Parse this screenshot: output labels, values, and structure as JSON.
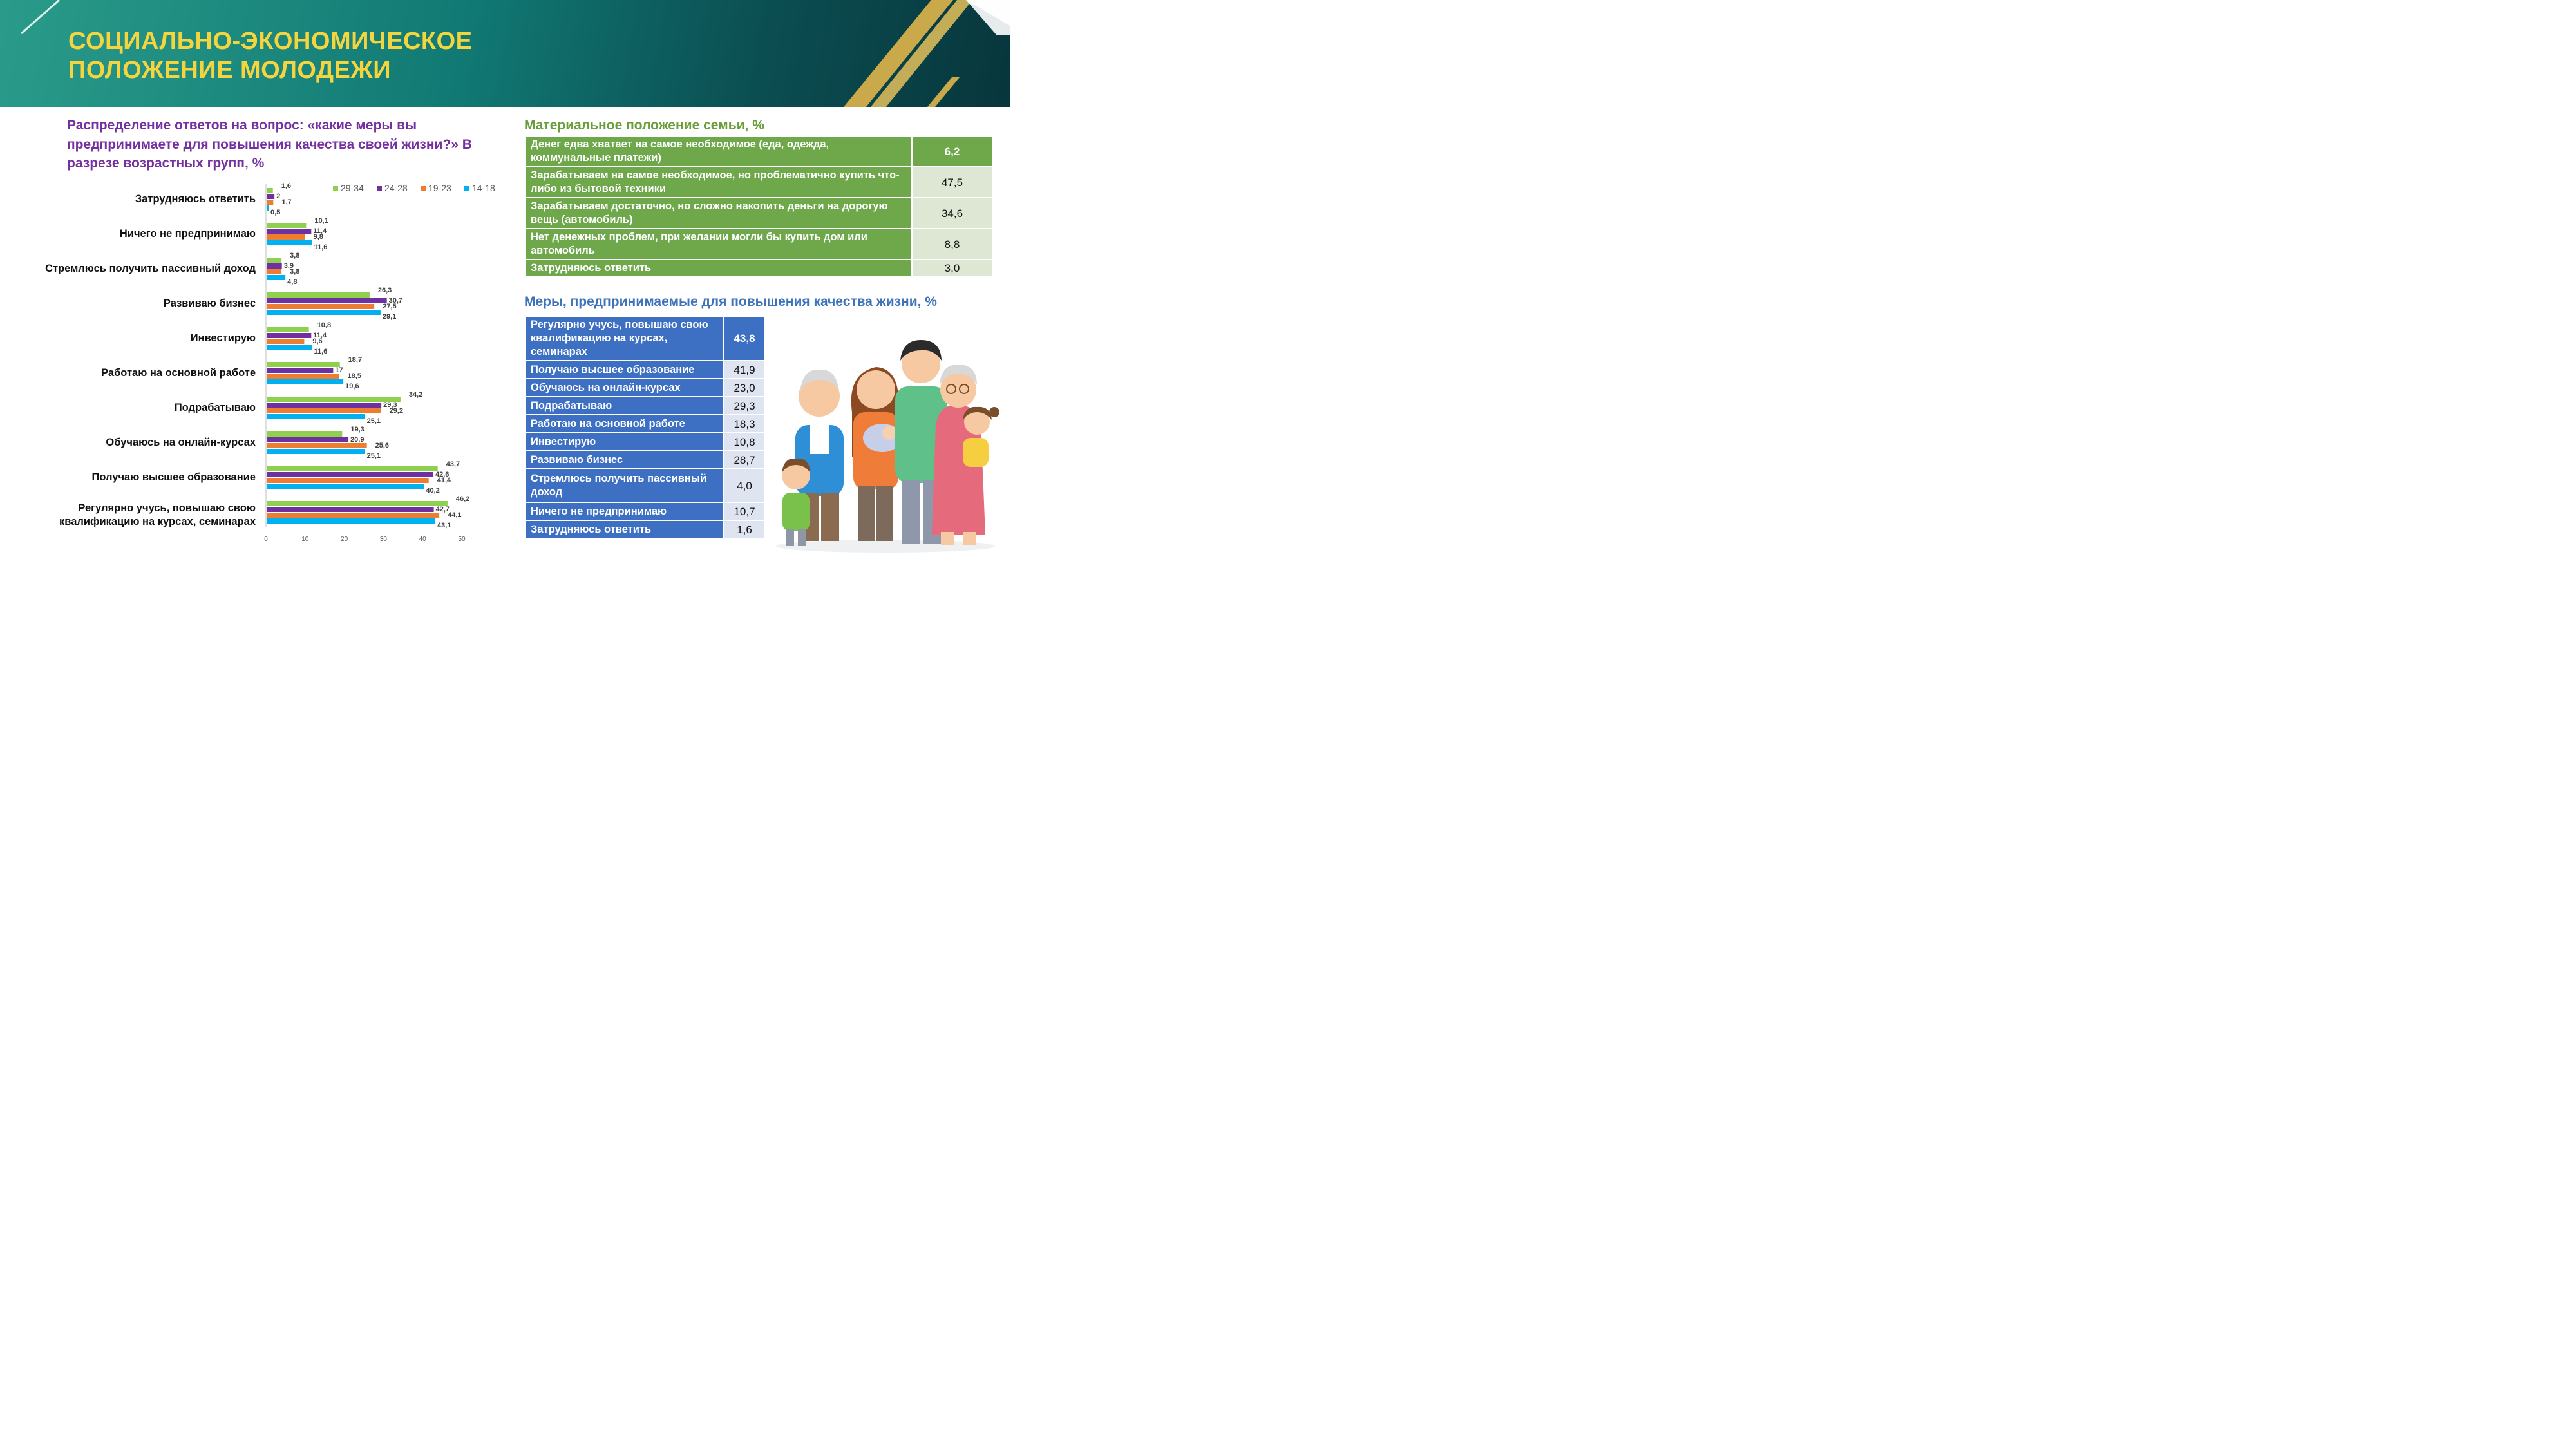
{
  "header": {
    "title_line1": "СОЦИАЛЬНО-ЭКОНОМИЧЕСКОЕ",
    "title_line2": "ПОЛОЖЕНИЕ МОЛОДЕЖИ",
    "colors": {
      "title": "#f4d53f",
      "background": "#117a74"
    }
  },
  "chart_title": "Распределение ответов на вопрос: «какие меры вы предпринимаете для повышения качества своей жизни?» В разрезе возрастных групп, %",
  "chart_data": {
    "type": "bar",
    "orientation": "horizontal",
    "title": "Распределение ответов на вопрос: «какие меры вы предпринимаете для повышения качества своей жизни?» В разрезе возрастных групп, %",
    "categories": [
      "Затрудняюсь ответить",
      "Ничего не предпринимаю",
      "Стремлюсь получить пассивный доход",
      "Развиваю бизнес",
      "Инвестирую",
      "Работаю на основной работе",
      "Подрабатываю",
      "Обучаюсь на онлайн-курсах",
      "Получаю высшее образование",
      "Регулярно учусь, повышаю свою квалификацию на курсах, семинарах"
    ],
    "series": [
      {
        "name": "29-34",
        "color": "#8fd14f",
        "values": [
          1.6,
          10.1,
          3.8,
          26.3,
          10.8,
          18.7,
          34.2,
          19.3,
          43.7,
          46.2
        ],
        "labels": [
          "1,6",
          "10,1",
          "3,8",
          "26,3",
          "10,8",
          "18,7",
          "34,2",
          "19,3",
          "43,7",
          "46,2"
        ]
      },
      {
        "name": "24-28",
        "color": "#7030a0",
        "values": [
          2,
          11.4,
          3.9,
          30.7,
          11.4,
          17,
          29.3,
          20.9,
          42.6,
          42.7
        ],
        "labels": [
          "2",
          "11,4",
          "3,9",
          "30,7",
          "11,4",
          "17",
          "29,3",
          "20,9",
          "42,6",
          "42,7"
        ]
      },
      {
        "name": "19-23",
        "color": "#ed7d31",
        "values": [
          1.7,
          9.8,
          3.8,
          27.5,
          9.6,
          18.5,
          29.2,
          25.6,
          41.4,
          44.1
        ],
        "labels": [
          "1,7",
          "9,8",
          "3,8",
          "27,5",
          "9,6",
          "18,5",
          "29,2",
          "25,6",
          "41,4",
          "44,1"
        ]
      },
      {
        "name": "14-18",
        "color": "#00b0f0",
        "values": [
          0.5,
          11.6,
          4.8,
          29.1,
          11.6,
          19.6,
          25.1,
          25.1,
          40.2,
          43.1
        ],
        "labels": [
          "0,5",
          "11,6",
          "4,8",
          "29,1",
          "11,6",
          "19,6",
          "25,1",
          "25,1",
          "40,2",
          "43,1"
        ]
      }
    ],
    "xlim": [
      0,
      50
    ],
    "xticks": [
      "0",
      "10",
      "20",
      "30",
      "40",
      "50"
    ],
    "grid": false,
    "legend_position": "top"
  },
  "table1": {
    "title": "Материальное положение семьи, %",
    "rows": [
      {
        "label": "Денег едва хватает на самое необходимое (еда, одежда, коммунальные платежи)",
        "value": "6,2"
      },
      {
        "label": "Зарабатываем на самое необходимое, но проблематично купить что-либо из бытовой техники",
        "value": "47,5"
      },
      {
        "label": "Зарабатываем достаточно, но сложно накопить деньги на дорогую вещь (автомобиль)",
        "value": "34,6"
      },
      {
        "label": "Нет денежных проблем, при желании могли бы купить дом или автомобиль",
        "value": "8,8"
      },
      {
        "label": "Затрудняюсь ответить",
        "value": "3,0"
      }
    ]
  },
  "table2": {
    "title": "Меры, предпринимаемые для повышения качества жизни, %",
    "rows": [
      {
        "label": "Регулярно учусь, повышаю свою квалификацию на курсах, семинарах",
        "value": "43,8"
      },
      {
        "label": "Получаю высшее образование",
        "value": "41,9"
      },
      {
        "label": "Обучаюсь на онлайн-курсах",
        "value": "23,0"
      },
      {
        "label": "Подрабатываю",
        "value": "29,3"
      },
      {
        "label": "Работаю на основной работе",
        "value": "18,3"
      },
      {
        "label": "Инвестирую",
        "value": "10,8"
      },
      {
        "label": "Развиваю бизнес",
        "value": "28,7"
      },
      {
        "label": "Стремлюсь получить пассивный доход",
        "value": "4,0"
      },
      {
        "label": "Ничего не предпринимаю",
        "value": "10,7"
      },
      {
        "label": "Затрудняюсь ответить",
        "value": "1,6"
      }
    ]
  }
}
